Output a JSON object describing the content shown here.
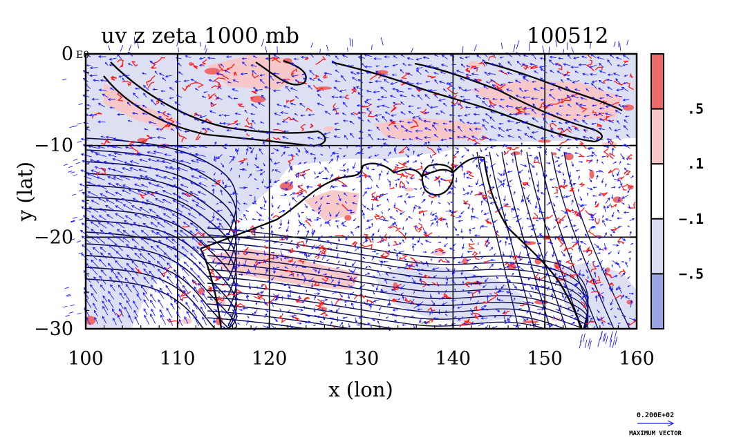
{
  "chart_data": {
    "type": "heatmap",
    "title": "uv z zeta 1000 mb",
    "timestamp": "100512",
    "xlabel": "x (lon)",
    "ylabel": "y (lat)",
    "xlim": [
      100,
      160
    ],
    "ylim": [
      -30,
      0
    ],
    "x_ticks": [
      {
        "value": 100,
        "label": "100"
      },
      {
        "value": 110,
        "label": "110"
      },
      {
        "value": 120,
        "label": "120"
      },
      {
        "value": 130,
        "label": "130"
      },
      {
        "value": 140,
        "label": "140"
      },
      {
        "value": 150,
        "label": "150"
      },
      {
        "value": 160,
        "label": "160"
      }
    ],
    "y_ticks": [
      {
        "value": 0,
        "label": "0"
      },
      {
        "value": -10,
        "label": "−10"
      },
      {
        "value": -20,
        "label": "−20"
      },
      {
        "value": -30,
        "label": "−30"
      }
    ],
    "y_top_tag": "E0",
    "grid": true,
    "grid_lon": [
      110,
      120,
      130,
      140,
      150
    ],
    "grid_lat": [
      -10,
      -20
    ],
    "colorbar": {
      "levels": [
        {
          "label": ".5",
          "value": 0.5
        },
        {
          "label": ".1",
          "value": 0.1
        },
        {
          "label": "−.1",
          "value": -0.1
        },
        {
          "label": "−.5",
          "value": -0.5
        }
      ],
      "bins": [
        {
          "range": "> .5",
          "color": "#ef6b6b"
        },
        {
          "range": ".1 to .5",
          "color": "#f7c6c6"
        },
        {
          "range": "−.1 to .1",
          "color": "#ffffff"
        },
        {
          "range": "−.5 to −.1",
          "color": "#d9dcf2"
        },
        {
          "range": "< −.5",
          "color": "#9aa3e6"
        }
      ]
    },
    "vector_reference": {
      "value": "0.200E+02",
      "caption": "MAXIMUM VECTOR"
    },
    "colors": {
      "vector": "#1a1aff",
      "contour_positive": "#ff1a1a",
      "contour_height": "#0d0d4d",
      "coastline": "#000000"
    }
  }
}
